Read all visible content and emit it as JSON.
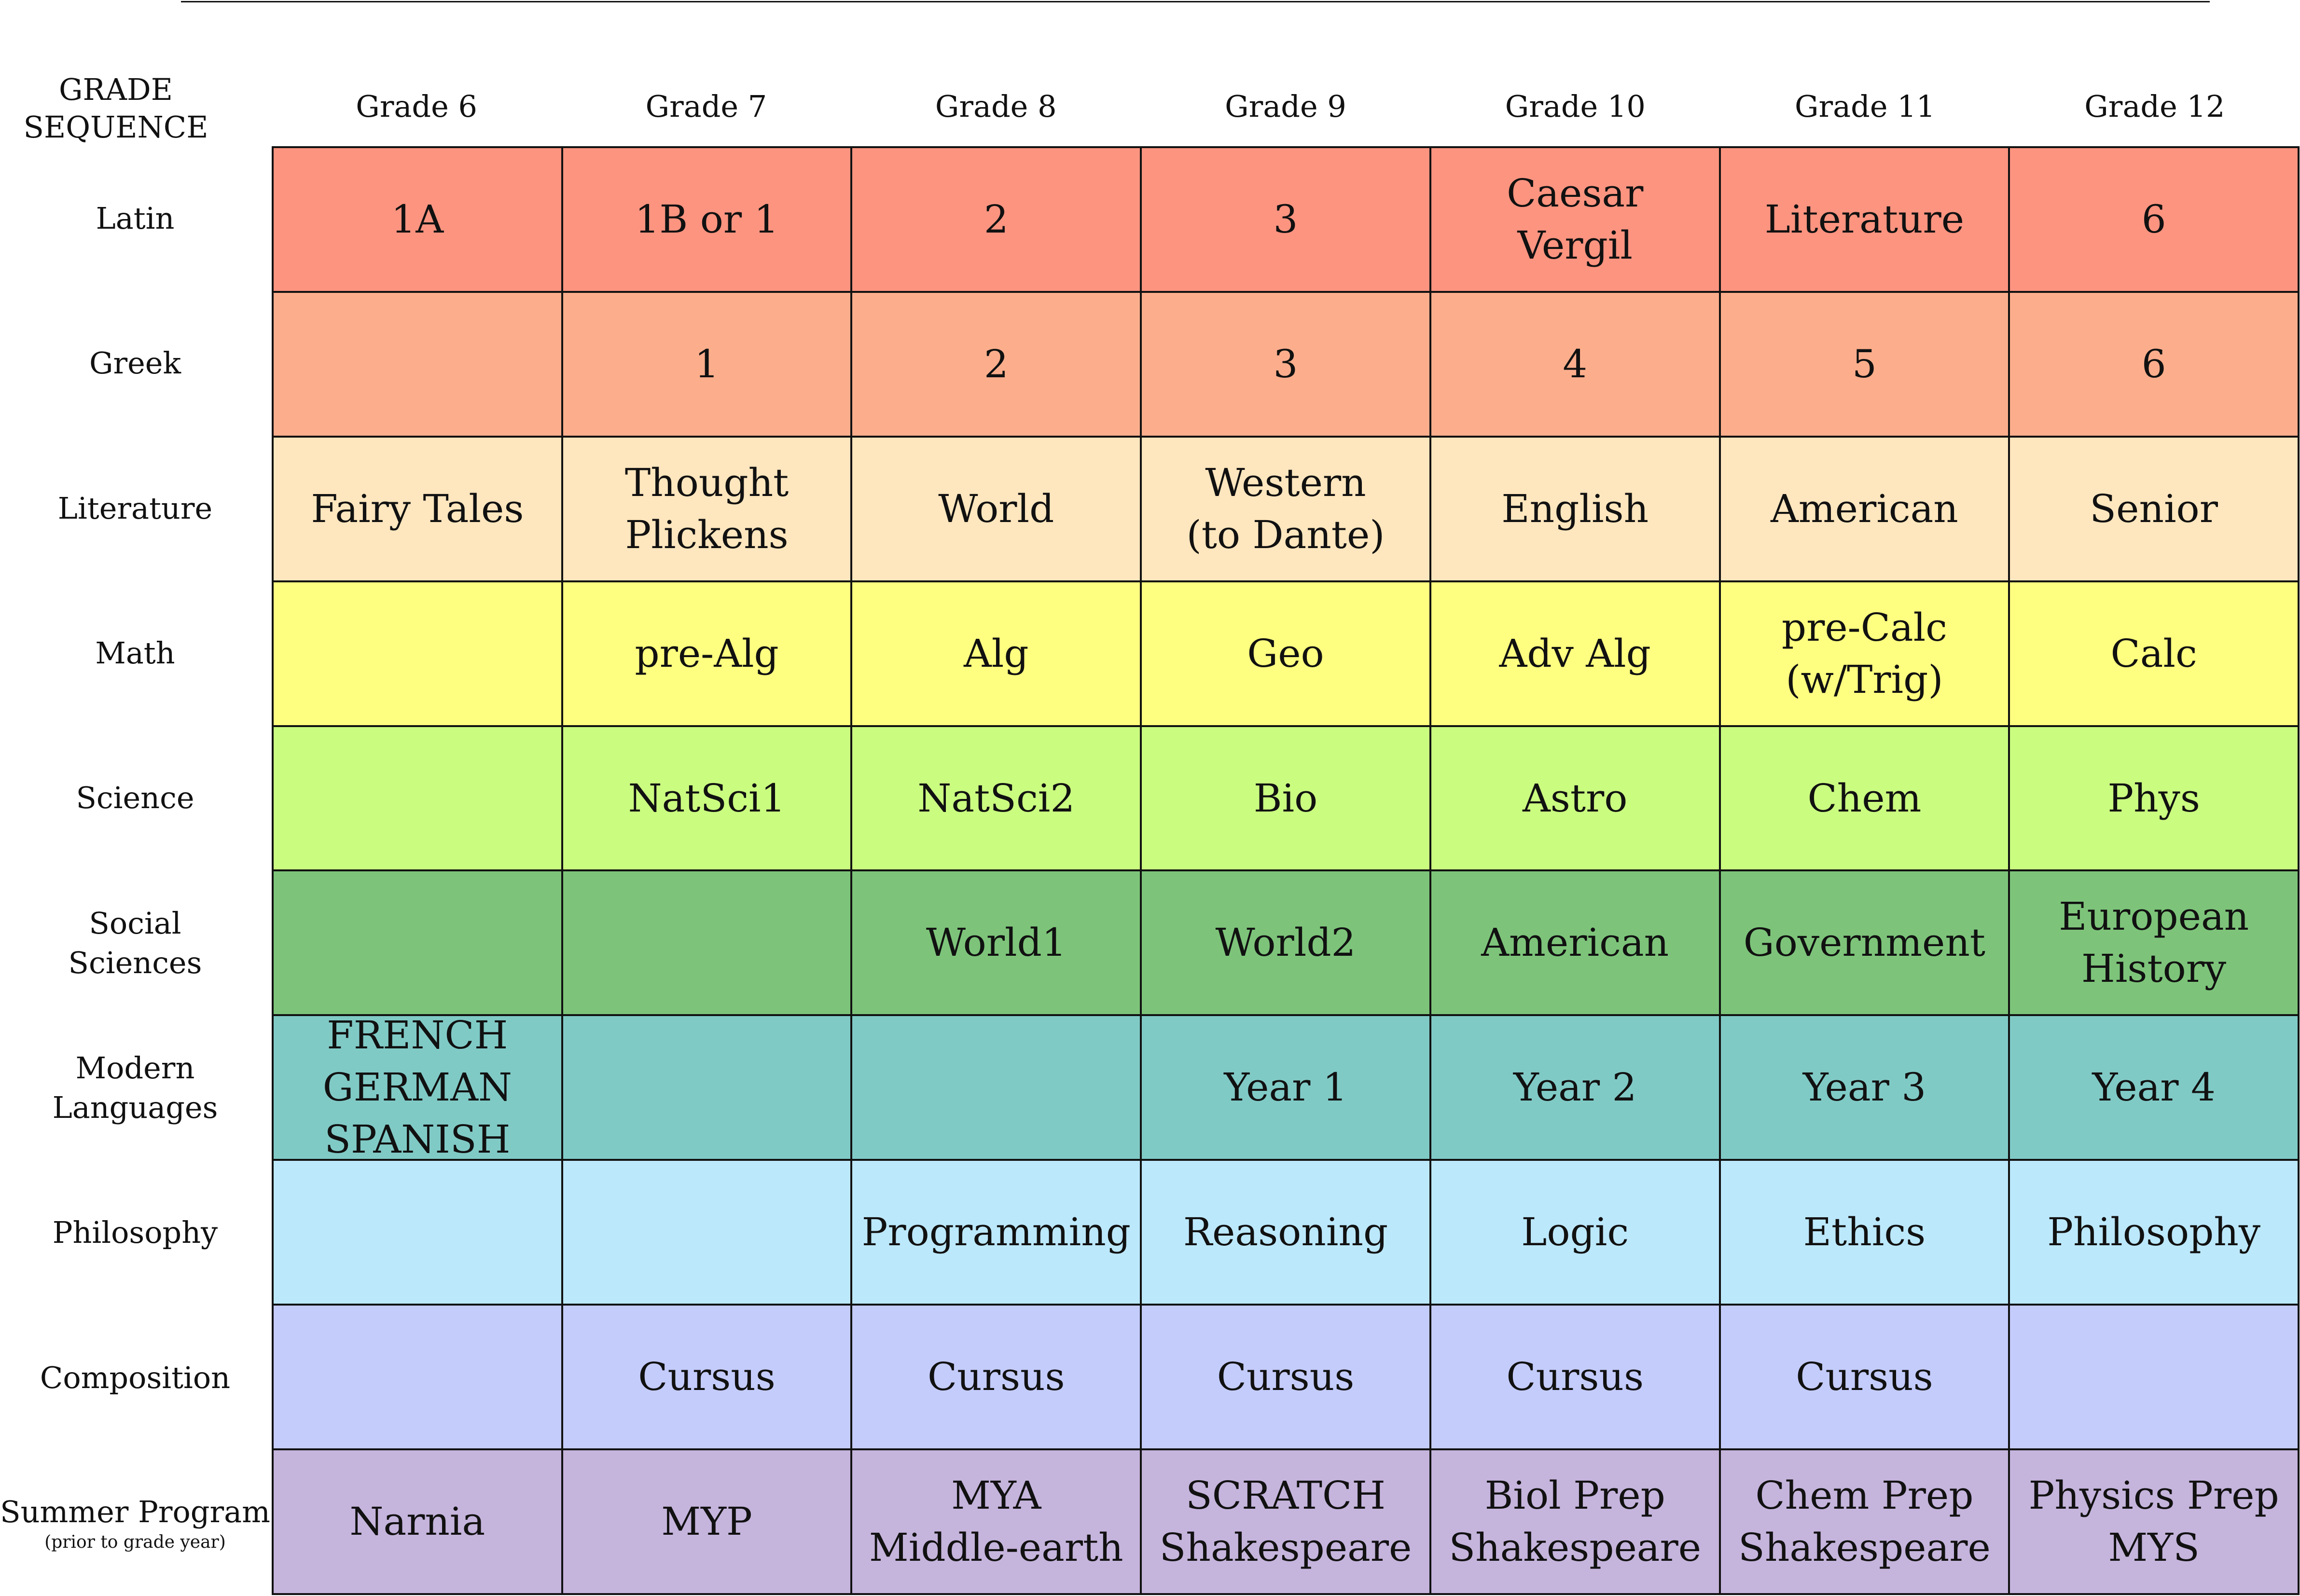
{
  "header": {
    "corner_line1": "GRADE",
    "corner_line2": "SEQUENCE",
    "grades": [
      "Grade 6",
      "Grade 7",
      "Grade 8",
      "Grade 9",
      "Grade 10",
      "Grade 11",
      "Grade 12"
    ]
  },
  "rows": [
    {
      "label": "Latin",
      "color": "#FC9480",
      "cells": [
        "1A",
        "1B or 1",
        "2",
        "3",
        "Caesar\nVergil",
        "Literature",
        "6"
      ]
    },
    {
      "label": "Greek",
      "color": "#FCAE8C",
      "cells": [
        "",
        "1",
        "2",
        "3",
        "4",
        "5",
        "6"
      ]
    },
    {
      "label": "Literature",
      "color": "#FEE6BE",
      "cells": [
        "Fairy Tales",
        "Thought\nPlickens",
        "World",
        "Western\n(to Dante)",
        "English",
        "American",
        "Senior"
      ]
    },
    {
      "label": "Math",
      "color": "#FEFE80",
      "cells": [
        "",
        "pre-Alg",
        "Alg",
        "Geo",
        "Adv Alg",
        "pre-Calc\n(w/Trig)",
        "Calc"
      ]
    },
    {
      "label": "Science",
      "color": "#CAFC80",
      "cells": [
        "",
        "NatSci1",
        "NatSci2",
        "Bio",
        "Astro",
        "Chem",
        "Phys"
      ]
    },
    {
      "label": "Social\nSciences",
      "color": "#7DC47A",
      "cells": [
        "",
        "",
        "World1",
        "World2",
        "American",
        "Government",
        "European\nHistory"
      ]
    },
    {
      "label": "Modern\nLanguages",
      "color": "#80CAC6",
      "cells": [
        "FRENCH\nGERMAN\nSPANISH",
        "",
        "",
        "Year 1",
        "Year 2",
        "Year 3",
        "Year 4"
      ]
    },
    {
      "label": "Philosophy",
      "color": "#BCE8FC",
      "cells": [
        "",
        "",
        "Programming",
        "Reasoning",
        "Logic",
        "Ethics",
        "Philosophy"
      ]
    },
    {
      "label": "Composition",
      "color": "#C4CCFC",
      "cells": [
        "",
        "Cursus",
        "Cursus",
        "Cursus",
        "Cursus",
        "Cursus",
        ""
      ]
    },
    {
      "label": "Summer Program",
      "sublabel": "(prior to grade year)",
      "color": "#C5B4DC",
      "cells": [
        "Narnia",
        "MYP",
        "MYA\nMiddle-earth",
        "SCRATCH\nShakespeare",
        "Biol Prep\nShakespeare",
        "Chem Prep\nShakespeare",
        "Physics Prep\nMYS"
      ]
    }
  ]
}
